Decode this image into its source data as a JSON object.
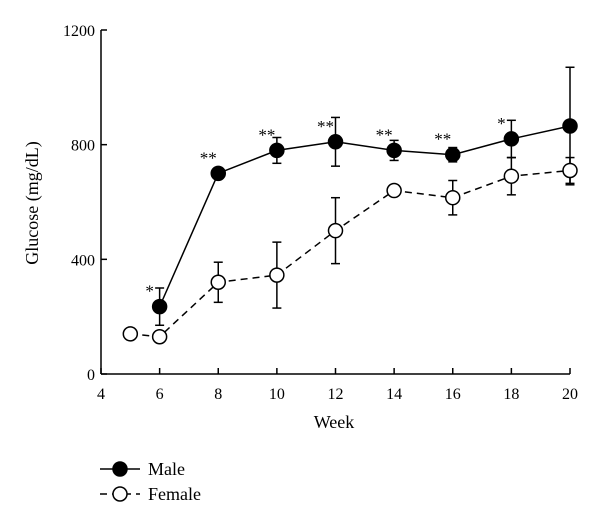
{
  "chart_data": {
    "type": "line",
    "xlabel": "Week",
    "ylabel": "Glucose (mg/dL)",
    "xlim": [
      4,
      20
    ],
    "ylim": [
      0,
      1200
    ],
    "xticks": [
      4,
      6,
      8,
      10,
      12,
      14,
      16,
      18,
      20
    ],
    "yticks": [
      0,
      400,
      800,
      1200
    ],
    "grid": false,
    "legend": "bottom-left",
    "series": [
      {
        "name": "Male",
        "marker": "filled-circle",
        "line": "solid",
        "points": [
          {
            "x": 6,
            "y": 235,
            "err": 65
          },
          {
            "x": 8,
            "y": 700,
            "err": 10
          },
          {
            "x": 10,
            "y": 780,
            "err": 45
          },
          {
            "x": 12,
            "y": 810,
            "err": 85
          },
          {
            "x": 14,
            "y": 780,
            "err": 35
          },
          {
            "x": 16,
            "y": 765,
            "err": 25
          },
          {
            "x": 18,
            "y": 820,
            "err": 65
          },
          {
            "x": 20,
            "y": 865,
            "err": 205
          }
        ]
      },
      {
        "name": "Female",
        "marker": "open-circle",
        "line": "dashed",
        "points": [
          {
            "x": 5,
            "y": 140,
            "err": 0
          },
          {
            "x": 6,
            "y": 130,
            "err": 0
          },
          {
            "x": 8,
            "y": 320,
            "err": 70
          },
          {
            "x": 10,
            "y": 345,
            "err": 115
          },
          {
            "x": 12,
            "y": 500,
            "err": 115
          },
          {
            "x": 14,
            "y": 640,
            "err": 0
          },
          {
            "x": 16,
            "y": 615,
            "err": 60
          },
          {
            "x": 18,
            "y": 690,
            "err": 65
          },
          {
            "x": 20,
            "y": 710,
            "err": 45
          }
        ]
      }
    ],
    "annotations": [
      {
        "x": 6,
        "y": 235,
        "text": "*"
      },
      {
        "x": 8,
        "y": 700,
        "text": "**"
      },
      {
        "x": 10,
        "y": 780,
        "text": "**"
      },
      {
        "x": 12,
        "y": 810,
        "text": "**"
      },
      {
        "x": 14,
        "y": 780,
        "text": "**"
      },
      {
        "x": 16,
        "y": 765,
        "text": "**"
      },
      {
        "x": 18,
        "y": 820,
        "text": "*"
      }
    ]
  }
}
